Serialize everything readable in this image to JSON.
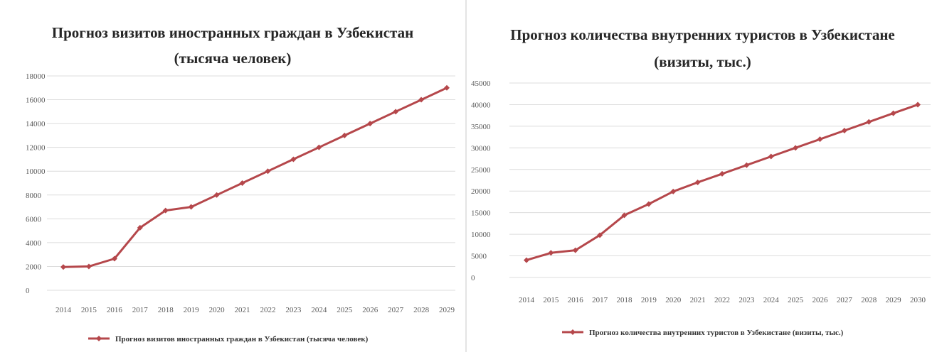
{
  "colors": {
    "series": "#b5474b",
    "grid": "#dcdcdc"
  },
  "chart_data": [
    {
      "type": "line",
      "title_line1": "Прогноз визитов иностранных граждан в Узбекистан",
      "title_line2": "(тысяча человек)",
      "x": [
        "2014",
        "2015",
        "2016",
        "2017",
        "2018",
        "2019",
        "2020",
        "2021",
        "2022",
        "2023",
        "2024",
        "2025",
        "2026",
        "2027",
        "2028",
        "2029"
      ],
      "series": [
        {
          "name": "Прогноз визитов иностранных граждан в Узбекистан (тысяча человек)",
          "values": [
            1950,
            2000,
            2650,
            5250,
            6700,
            7000,
            8000,
            9000,
            10000,
            11000,
            12000,
            13000,
            14000,
            15000,
            16000,
            17000
          ]
        }
      ],
      "yticks": [
        "0",
        "2000",
        "4000",
        "6000",
        "8000",
        "10000",
        "12000",
        "14000",
        "16000",
        "18000"
      ],
      "ylim": [
        0,
        18000
      ],
      "grid": true,
      "legend": "bottom"
    },
    {
      "type": "line",
      "title_line1": "Прогноз количества внутренних туристов в Узбекистане",
      "title_line2": "(визиты, тыс.)",
      "x": [
        "2014",
        "2015",
        "2016",
        "2017",
        "2018",
        "2019",
        "2020",
        "2021",
        "2022",
        "2023",
        "2024",
        "2025",
        "2026",
        "2027",
        "2028",
        "2029",
        "2030"
      ],
      "series": [
        {
          "name": "Прогноз количества внутренних туристов в Узбекистане (визиты, тыс.)",
          "values": [
            4000,
            5700,
            6300,
            9800,
            14400,
            17000,
            19900,
            22000,
            24000,
            26000,
            28000,
            30000,
            32000,
            34000,
            36000,
            38000,
            40000
          ]
        }
      ],
      "yticks": [
        "0",
        "5000",
        "10000",
        "15000",
        "20000",
        "25000",
        "30000",
        "35000",
        "40000",
        "45000"
      ],
      "ylim": [
        0,
        45000
      ],
      "grid": true,
      "legend": "bottom"
    }
  ]
}
